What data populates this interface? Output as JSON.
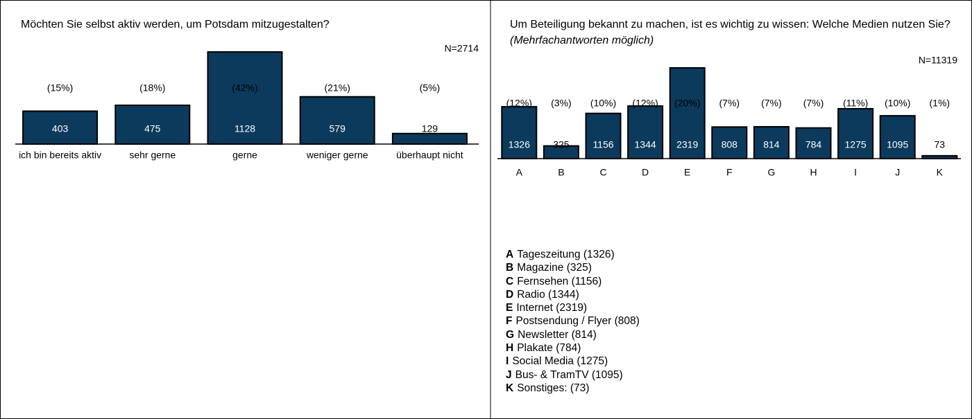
{
  "chart_data": [
    {
      "type": "bar",
      "title": "Möchten Sie selbst aktiv werden, um Potsdam mitzugestalten?",
      "annotation": "N=2714",
      "categories": [
        "ich bin bereits aktiv",
        "sehr gerne",
        "gerne",
        "weniger gerne",
        "überhaupt nicht"
      ],
      "values": [
        403,
        475,
        1128,
        579,
        129
      ],
      "percent_labels": [
        "(15%)",
        "(18%)",
        "(42%)",
        "(21%)",
        "(5%)"
      ],
      "color": "#0b3a5c"
    },
    {
      "type": "bar",
      "title": "Um Beteiligung bekannt zu machen, ist es wichtig zu wissen: Welche Medien nutzen Sie?",
      "title_note": "(Mehrfachantworten möglich)",
      "annotation": "N=11319",
      "categories": [
        "A",
        "B",
        "C",
        "D",
        "E",
        "F",
        "G",
        "H",
        "I",
        "J",
        "K"
      ],
      "values": [
        1326,
        325,
        1156,
        1344,
        2319,
        808,
        814,
        784,
        1275,
        1095,
        73
      ],
      "percent_labels": [
        "(12%)",
        "(3%)",
        "(10%)",
        "(12%)",
        "(20%)",
        "(7%)",
        "(7%)",
        "(7%)",
        "(11%)",
        "(10%)",
        "(1%)"
      ],
      "color": "#0b3a5c",
      "legend": [
        {
          "key": "A",
          "text": "Tageszeitung (1326)"
        },
        {
          "key": "B",
          "text": "Magazine (325)"
        },
        {
          "key": "C",
          "text": "Fernsehen (1156)"
        },
        {
          "key": "D",
          "text": "Radio (1344)"
        },
        {
          "key": "E",
          "text": "Internet (2319)"
        },
        {
          "key": "F",
          "text": "Postsendung / Flyer (808)"
        },
        {
          "key": "G",
          "text": "Newsletter (814)"
        },
        {
          "key": "H",
          "text": "Plakate (784)"
        },
        {
          "key": "I",
          "text": "Social Media (1275)"
        },
        {
          "key": "J",
          "text": "Bus- & TramTV (1095)"
        },
        {
          "key": "K",
          "text": "Sonstiges: (73)"
        }
      ]
    }
  ]
}
